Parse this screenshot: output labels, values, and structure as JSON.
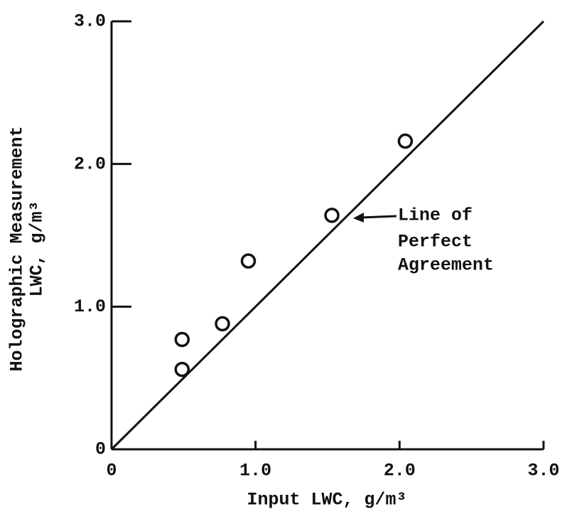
{
  "chart_data": {
    "type": "scatter",
    "x_label": "Input LWC, g/m³",
    "y_label": [
      "Holographic Measurement",
      "LWC, g/m³"
    ],
    "x": [
      0.49,
      0.49,
      0.77,
      0.95,
      1.53,
      2.04
    ],
    "values": [
      0.56,
      0.77,
      0.88,
      1.32,
      1.64,
      2.16
    ],
    "color": "#111111",
    "reference_line": {
      "x": [
        0,
        3
      ],
      "y": [
        0,
        3
      ]
    },
    "annotation": [
      "Line of",
      "Perfect",
      "Agreement"
    ],
    "xlim": [
      0,
      3
    ],
    "ylim": [
      0,
      3
    ],
    "xticks": [
      0,
      {
        "value": 1,
        "label": "1.0"
      },
      {
        "value": 2,
        "label": "2.0"
      },
      {
        "value": 3,
        "label": "3.0"
      }
    ],
    "yticks": [
      0,
      {
        "value": 1,
        "label": "1.0"
      },
      {
        "value": 2,
        "label": "2.0"
      },
      {
        "value": 3,
        "label": "3.0"
      }
    ]
  }
}
